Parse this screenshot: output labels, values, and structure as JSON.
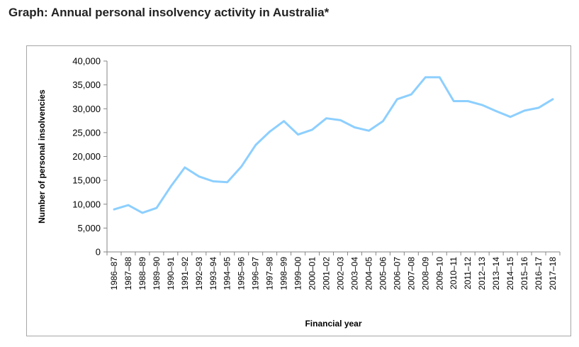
{
  "page": {
    "title": "Graph: Annual personal insolvency activity in Australia*"
  },
  "chart_data": {
    "type": "line",
    "title": "",
    "xlabel": "Financial  year",
    "ylabel": "Number of personal insolvencies",
    "ylim": [
      0,
      40000
    ],
    "yticks": [
      0,
      5000,
      10000,
      15000,
      20000,
      25000,
      30000,
      35000,
      40000
    ],
    "ytick_labels": [
      "0",
      "5,000",
      "10,000",
      "15,000",
      "20,000",
      "25,000",
      "30,000",
      "35,000",
      "40,000"
    ],
    "grid": false,
    "legend": "none",
    "line_color": "#8dcfff",
    "categories": [
      "1986–87",
      "1987–88",
      "1988–89",
      "1989–90",
      "1990–91",
      "1991–92",
      "1992–93",
      "1993–94",
      "1994–95",
      "1995–96",
      "1996–97",
      "1997–98",
      "1998–99",
      "1999–00",
      "2000–01",
      "2001–02",
      "2002–03",
      "2003–04",
      "2004–05",
      "2005–06",
      "2006–07",
      "2007–08",
      "2008–09",
      "2009–10",
      "2010–11",
      "2011–12",
      "2012–13",
      "2013–14",
      "2014–15",
      "2015–16",
      "2016–17",
      "2017–18"
    ],
    "series": [
      {
        "values": [
          8900,
          9800,
          8200,
          9200,
          13700,
          17700,
          15800,
          14800,
          14600,
          17900,
          22400,
          25200,
          27400,
          24600,
          25600,
          28000,
          27600,
          26100,
          25400,
          27400,
          32000,
          33000,
          36600,
          36600,
          31600,
          31600,
          30800,
          29500,
          28300,
          29600,
          30200,
          32000
        ]
      }
    ]
  }
}
